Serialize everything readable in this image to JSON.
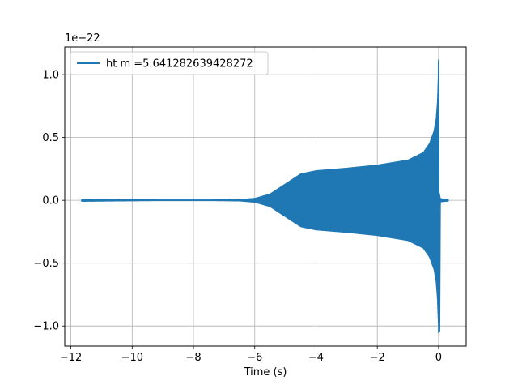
{
  "chart_data": {
    "type": "line",
    "xlabel": "Time (s)",
    "ylabel": "",
    "offset_text": "1e−22",
    "xlim": [
      -12.2,
      0.9
    ],
    "ylim": [
      -1.16,
      1.22
    ],
    "xticks": [
      -12,
      -10,
      -8,
      -6,
      -4,
      -2,
      0
    ],
    "xtick_labels": [
      "−12",
      "−10",
      "−8",
      "−6",
      "−4",
      "−2",
      "0"
    ],
    "yticks": [
      -1.0,
      -0.5,
      0.0,
      0.5,
      1.0
    ],
    "ytick_labels": [
      "−1.0",
      "−0.5",
      "0.0",
      "0.5",
      "1.0"
    ],
    "grid": true,
    "legend_position": "top-left",
    "color": "#1f77b4",
    "series": [
      {
        "name": "ht m =5.641282639428272",
        "start": -11.65,
        "end": 0.32,
        "merger": 0.0,
        "envelope": {
          "x": [
            -11.65,
            -10.5,
            -9,
            -7.5,
            -6.5,
            -6.0,
            -5.5,
            -5.0,
            -4.5,
            -4.0,
            -3.0,
            -2.0,
            -1.0,
            -0.5,
            -0.3,
            -0.15,
            -0.08,
            -0.04,
            -0.01,
            0.0
          ],
          "y": [
            0.008,
            0.005,
            0.002,
            0.002,
            0.005,
            0.015,
            0.05,
            0.13,
            0.21,
            0.235,
            0.255,
            0.28,
            0.32,
            0.38,
            0.45,
            0.55,
            0.65,
            0.78,
            0.98,
            1.12
          ]
        },
        "ringdown": {
          "x": [
            0.0,
            0.06,
            0.32
          ],
          "y": [
            0.08,
            0.012,
            0.006
          ]
        }
      }
    ]
  }
}
